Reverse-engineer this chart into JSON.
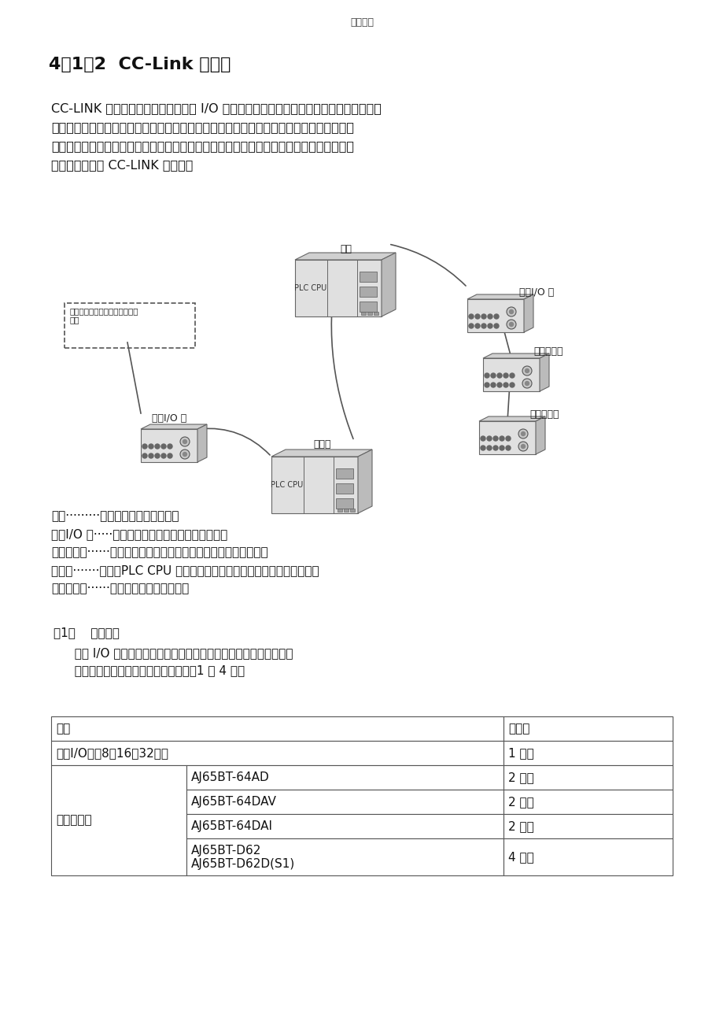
{
  "page_header": "优质文档",
  "title": "4．1．2  CC-Link 的构造",
  "intro_lines": [
    "CC-LINK 不仅支持处理位信息的远程 I/O 站，还支持以字为单位进展数据交换的远程设备",
    "站、以及可进展信息通讯的这能设备站。此外它还支持众多生产厂家制造的现场设备，确保",
    "了多厂商支持的环境。用户可依据不同的工厂自动化环境中的应用，选择各种适宜的设备。",
    "更多产品请查看 CC-LINK 官方网站"
  ],
  "legend_lines": [
    "主站·········限制数据链接系统的站。",
    "远程I/O 站·····仅处理以位为单位的数据的远程站。",
    "远程设备站······仅处理以位为单位和以字为单位的数据的远程站。",
    "本地站·······有一个PLC CPU 并且有实力和主站以及其它本地站通信的站。",
    "智能设备站······可以执行瞬时传送的站。"
  ],
  "section_title": "（1）    占用站数",
  "sub_text1": "  远程 I/O 站，远程设备站和本地站的占用的站数是预先定义好的。",
  "sub_text2": "  但一个本地站可以设置的占用站数为：1 到 4 个站",
  "bg_color": "#ffffff"
}
